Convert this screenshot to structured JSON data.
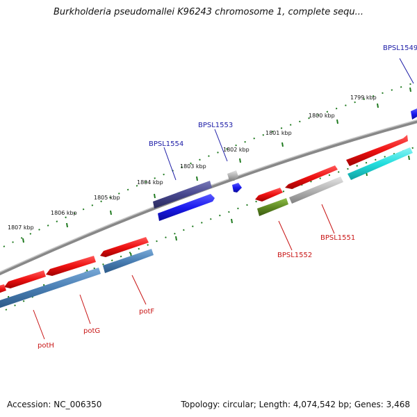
{
  "title": "Burkholderia pseudomallei K96243 chromosome 1, complete sequ...",
  "footer": {
    "accession": "Accession: NC_006350",
    "summary": "Topology: circular; Length: 4,074,542 bp; Genes: 3,468"
  },
  "ticks": [
    "1799 kbp",
    "1800 kbp",
    "1801 kbp",
    "1802 kbp",
    "1803 kbp",
    "1804 kbp",
    "1805 kbp",
    "1806 kbp",
    "1807 kbp"
  ],
  "top_labels": [
    "BPSL1549",
    "BPSL1553",
    "BPSL1554"
  ],
  "bottom_labels": [
    "BPSL1552",
    "BPSL1551",
    "potF",
    "potG",
    "potH"
  ],
  "colors": {
    "forward_red": "#ee1111",
    "blue": "#1a1aee",
    "dark_blue": "#46468c",
    "steel_blue": "#4a7fb4",
    "gray": "#b4b4b4",
    "cyan": "#22dddd",
    "olive": "#5f8a22",
    "ticks": "#1f7a1f",
    "backbone": "#888888"
  }
}
